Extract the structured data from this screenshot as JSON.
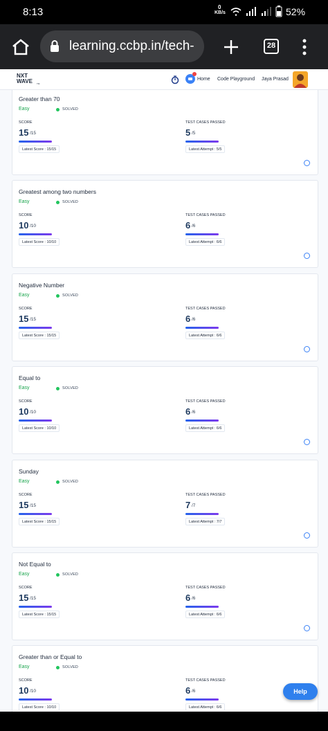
{
  "status_bar": {
    "time": "8:13",
    "speed_value": "0",
    "speed_unit": "KB/s",
    "battery": "52%"
  },
  "browser": {
    "url": "learning.ccbp.in/tech-",
    "tab_count": "28"
  },
  "header": {
    "logo_top": "NXT",
    "logo_bottom": "WAVE",
    "logo_suffix": "TM",
    "nav": [
      "Home",
      "Code Playground"
    ],
    "user": "Jaya Prasad"
  },
  "labels": {
    "difficulty": "Easy",
    "status": "SOLVED",
    "score": "SCORE",
    "tests": "TEST CASES PASSED"
  },
  "cards": [
    {
      "title": "Greater than 70",
      "score": "15",
      "score_total": "/15",
      "latest_score": "Latest Score : 15/15",
      "passed": "5",
      "passed_total": "/5",
      "latest_attempt": "Latest Attempt : 5/5"
    },
    {
      "title": "Greatest among two numbers",
      "score": "10",
      "score_total": "/10",
      "latest_score": "Latest Score : 10/10",
      "passed": "6",
      "passed_total": "/6",
      "latest_attempt": "Latest Attempt : 6/6"
    },
    {
      "title": "Negative Number",
      "score": "15",
      "score_total": "/15",
      "latest_score": "Latest Score : 15/15",
      "passed": "6",
      "passed_total": "/6",
      "latest_attempt": "Latest Attempt : 6/6"
    },
    {
      "title": "Equal to",
      "score": "10",
      "score_total": "/10",
      "latest_score": "Latest Score : 10/10",
      "passed": "6",
      "passed_total": "/6",
      "latest_attempt": "Latest Attempt : 6/6"
    },
    {
      "title": "Sunday",
      "score": "15",
      "score_total": "/15",
      "latest_score": "Latest Score : 15/15",
      "passed": "7",
      "passed_total": "/7",
      "latest_attempt": "Latest Attempt : 7/7"
    },
    {
      "title": "Not Equal to",
      "score": "15",
      "score_total": "/15",
      "latest_score": "Latest Score : 15/15",
      "passed": "6",
      "passed_total": "/6",
      "latest_attempt": "Latest Attempt : 6/6"
    },
    {
      "title": "Greater than or Equal to",
      "score": "10",
      "score_total": "/10",
      "latest_score": "Latest Score : 10/10",
      "passed": "6",
      "passed_total": "/6",
      "latest_attempt": "Latest Attempt : 6/6"
    }
  ],
  "help": "Help"
}
